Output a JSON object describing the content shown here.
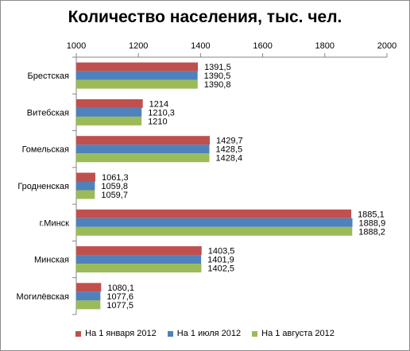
{
  "chart_data": {
    "type": "bar",
    "orientation": "horizontal",
    "title": "Количество населения, тыс. чел.",
    "categories": [
      "Брестская",
      "Витебская",
      "Гомельская",
      "Гродненская",
      "г.Минск",
      "Минская",
      "Могилёвская"
    ],
    "series": [
      {
        "name": "На 1 января 2012",
        "color": "#c0504d",
        "values": [
          1391.5,
          1214,
          1429.7,
          1061.3,
          1885.1,
          1403.5,
          1080.1
        ],
        "labels": [
          "1391,5",
          "1214",
          "1429,7",
          "1061,3",
          "1885,1",
          "1403,5",
          "1080,1"
        ]
      },
      {
        "name": "На 1 июля 2012",
        "color": "#4f81bd",
        "values": [
          1390.5,
          1210.3,
          1428.5,
          1059.8,
          1888.9,
          1401.9,
          1077.6
        ],
        "labels": [
          "1390,5",
          "1210,3",
          "1428,5",
          "1059,8",
          "1888,9",
          "1401,9",
          "1077,6"
        ]
      },
      {
        "name": "На 1 августа 2012",
        "color": "#9bbb59",
        "values": [
          1390.8,
          1210,
          1428.4,
          1059.7,
          1888.2,
          1402.5,
          1077.5
        ],
        "labels": [
          "1390,8",
          "1210",
          "1428,4",
          "1059,7",
          "1888,2",
          "1402,5",
          "1077,5"
        ]
      }
    ],
    "xlim": [
      1000,
      2000
    ],
    "xticks": [
      1000,
      1200,
      1400,
      1600,
      1800,
      2000
    ],
    "axis_position": "top",
    "grid": false,
    "legend_position": "bottom"
  }
}
